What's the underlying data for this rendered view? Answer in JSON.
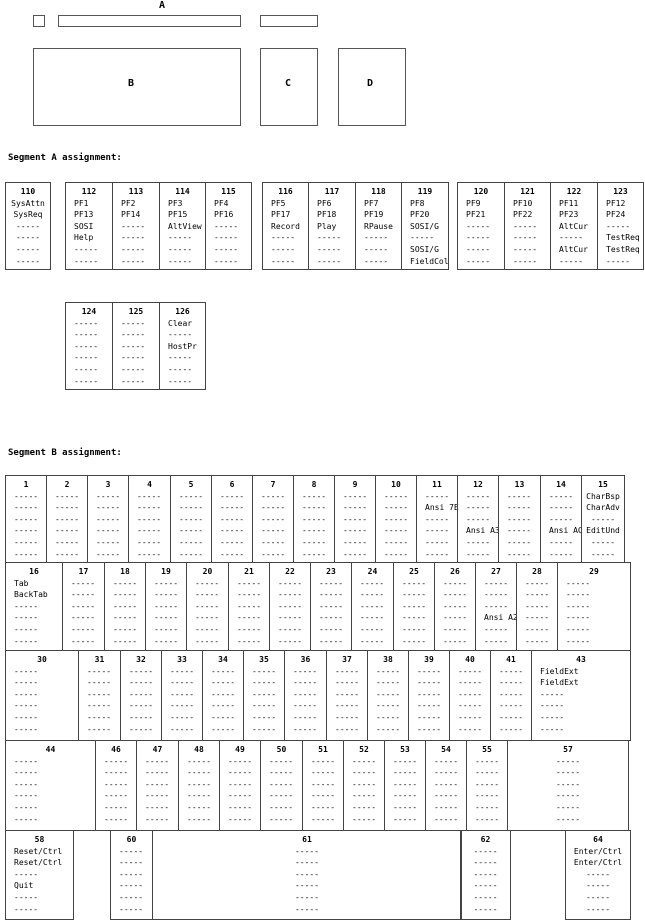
{
  "overview": {
    "label_a": "A",
    "label_b": "B",
    "label_c": "C",
    "label_d": "D"
  },
  "segment_a": {
    "title": "Segment A assignment:",
    "keys": [
      {
        "n": "110",
        "lines": [
          "SysAttn",
          "SysReq",
          "-----",
          "-----",
          "-----",
          "-----"
        ]
      },
      {
        "n": "112",
        "lines": [
          "PF1",
          "PF13",
          "SOSI",
          "Help",
          "-----",
          "-----"
        ]
      },
      {
        "n": "113",
        "lines": [
          "PF2",
          "PF14",
          "-----",
          "-----",
          "-----",
          "-----"
        ]
      },
      {
        "n": "114",
        "lines": [
          "PF3",
          "PF15",
          "AltView",
          "-----",
          "-----",
          "-----"
        ]
      },
      {
        "n": "115",
        "lines": [
          "PF4",
          "PF16",
          "-----",
          "-----",
          "-----",
          "-----"
        ]
      },
      {
        "n": "116",
        "lines": [
          "PF5",
          "PF17",
          "Record",
          "-----",
          "-----",
          "-----"
        ]
      },
      {
        "n": "117",
        "lines": [
          "PF6",
          "PF18",
          "Play",
          "-----",
          "-----",
          "-----"
        ]
      },
      {
        "n": "118",
        "lines": [
          "PF7",
          "PF19",
          "RPause",
          "-----",
          "-----",
          "-----"
        ]
      },
      {
        "n": "119",
        "lines": [
          "PF8",
          "PF20",
          "SOSI/G",
          "-----",
          "SOSI/G",
          "FieldCol"
        ]
      },
      {
        "n": "120",
        "lines": [
          "PF9",
          "PF21",
          "-----",
          "-----",
          "-----",
          "-----"
        ]
      },
      {
        "n": "121",
        "lines": [
          "PF10",
          "PF22",
          "-----",
          "-----",
          "-----",
          "-----"
        ]
      },
      {
        "n": "122",
        "lines": [
          "PF11",
          "PF23",
          "AltCur",
          "-----",
          "AltCur",
          "-----"
        ]
      },
      {
        "n": "123",
        "lines": [
          "PF12",
          "PF24",
          "-----",
          "TestReq",
          "TestReq",
          "-----"
        ]
      },
      {
        "n": "124",
        "lines": [
          "-----",
          "-----",
          "-----",
          "-----",
          "-----",
          "-----"
        ]
      },
      {
        "n": "125",
        "lines": [
          "-----",
          "-----",
          "-----",
          "-----",
          "-----",
          "-----"
        ]
      },
      {
        "n": "126",
        "lines": [
          "Clear",
          "-----",
          "HostPr",
          "-----",
          "-----",
          "-----"
        ]
      }
    ]
  },
  "segment_b": {
    "title": "Segment B assignment:",
    "keys": [
      {
        "n": "1",
        "lines": [
          "-----",
          "-----",
          "-----",
          "-----",
          "-----",
          "-----"
        ]
      },
      {
        "n": "2",
        "lines": [
          "-----",
          "-----",
          "-----",
          "-----",
          "-----",
          "-----"
        ]
      },
      {
        "n": "3",
        "lines": [
          "-----",
          "-----",
          "-----",
          "-----",
          "-----",
          "-----"
        ]
      },
      {
        "n": "4",
        "lines": [
          "-----",
          "-----",
          "-----",
          "-----",
          "-----",
          "-----"
        ]
      },
      {
        "n": "5",
        "lines": [
          "-----",
          "-----",
          "-----",
          "-----",
          "-----",
          "-----"
        ]
      },
      {
        "n": "6",
        "lines": [
          "-----",
          "-----",
          "-----",
          "-----",
          "-----",
          "-----"
        ]
      },
      {
        "n": "7",
        "lines": [
          "-----",
          "-----",
          "-----",
          "-----",
          "-----",
          "-----"
        ]
      },
      {
        "n": "8",
        "lines": [
          "-----",
          "-----",
          "-----",
          "-----",
          "-----",
          "-----"
        ]
      },
      {
        "n": "9",
        "lines": [
          "-----",
          "-----",
          "-----",
          "-----",
          "-----",
          "-----"
        ]
      },
      {
        "n": "10",
        "lines": [
          "-----",
          "-----",
          "-----",
          "-----",
          "-----",
          "-----"
        ]
      },
      {
        "n": "11",
        "lines": [
          "-----",
          "Ansi 7E",
          "-----",
          "-----",
          "-----",
          "-----"
        ]
      },
      {
        "n": "12",
        "lines": [
          "-----",
          "-----",
          "-----",
          "Ansi A3",
          "-----",
          "-----"
        ]
      },
      {
        "n": "13",
        "lines": [
          "-----",
          "-----",
          "-----",
          "-----",
          "-----",
          "-----"
        ]
      },
      {
        "n": "14",
        "lines": [
          "-----",
          "-----",
          "-----",
          "Ansi AC",
          "-----",
          "-----"
        ]
      },
      {
        "n": "15",
        "lines": [
          "CharBsp",
          "CharAdv",
          "-----",
          "EditUnd",
          "-----",
          "-----"
        ]
      },
      {
        "n": "16",
        "lines": [
          "Tab",
          "BackTab",
          "-----",
          "-----",
          "-----",
          "-----"
        ]
      },
      {
        "n": "17",
        "lines": [
          "-----",
          "-----",
          "-----",
          "-----",
          "-----",
          "-----"
        ]
      },
      {
        "n": "18",
        "lines": [
          "-----",
          "-----",
          "-----",
          "-----",
          "-----",
          "-----"
        ]
      },
      {
        "n": "19",
        "lines": [
          "-----",
          "-----",
          "-----",
          "-----",
          "-----",
          "-----"
        ]
      },
      {
        "n": "20",
        "lines": [
          "-----",
          "-----",
          "-----",
          "-----",
          "-----",
          "-----"
        ]
      },
      {
        "n": "21",
        "lines": [
          "-----",
          "-----",
          "-----",
          "-----",
          "-----",
          "-----"
        ]
      },
      {
        "n": "22",
        "lines": [
          "-----",
          "-----",
          "-----",
          "-----",
          "-----",
          "-----"
        ]
      },
      {
        "n": "23",
        "lines": [
          "-----",
          "-----",
          "-----",
          "-----",
          "-----",
          "-----"
        ]
      },
      {
        "n": "24",
        "lines": [
          "-----",
          "-----",
          "-----",
          "-----",
          "-----",
          "-----"
        ]
      },
      {
        "n": "25",
        "lines": [
          "-----",
          "-----",
          "-----",
          "-----",
          "-----",
          "-----"
        ]
      },
      {
        "n": "26",
        "lines": [
          "-----",
          "-----",
          "-----",
          "-----",
          "-----",
          "-----"
        ]
      },
      {
        "n": "27",
        "lines": [
          "-----",
          "-----",
          "-----",
          "Ansi A2",
          "-----",
          "-----"
        ]
      },
      {
        "n": "28",
        "lines": [
          "-----",
          "-----",
          "-----",
          "-----",
          "-----",
          "-----"
        ]
      },
      {
        "n": "29",
        "lines": [
          "-----",
          "-----",
          "-----",
          "-----",
          "-----",
          "-----"
        ]
      },
      {
        "n": "30",
        "lines": [
          "-----",
          "-----",
          "-----",
          "-----",
          "-----",
          "-----"
        ]
      },
      {
        "n": "31",
        "lines": [
          "-----",
          "-----",
          "-----",
          "-----",
          "-----",
          "-----"
        ]
      },
      {
        "n": "32",
        "lines": [
          "-----",
          "-----",
          "-----",
          "-----",
          "-----",
          "-----"
        ]
      },
      {
        "n": "33",
        "lines": [
          "-----",
          "-----",
          "-----",
          "-----",
          "-----",
          "-----"
        ]
      },
      {
        "n": "34",
        "lines": [
          "-----",
          "-----",
          "-----",
          "-----",
          "-----",
          "-----"
        ]
      },
      {
        "n": "35",
        "lines": [
          "-----",
          "-----",
          "-----",
          "-----",
          "-----",
          "-----"
        ]
      },
      {
        "n": "36",
        "lines": [
          "-----",
          "-----",
          "-----",
          "-----",
          "-----",
          "-----"
        ]
      },
      {
        "n": "37",
        "lines": [
          "-----",
          "-----",
          "-----",
          "-----",
          "-----",
          "-----"
        ]
      },
      {
        "n": "38",
        "lines": [
          "-----",
          "-----",
          "-----",
          "-----",
          "-----",
          "-----"
        ]
      },
      {
        "n": "39",
        "lines": [
          "-----",
          "-----",
          "-----",
          "-----",
          "-----",
          "-----"
        ]
      },
      {
        "n": "40",
        "lines": [
          "-----",
          "-----",
          "-----",
          "-----",
          "-----",
          "-----"
        ]
      },
      {
        "n": "41",
        "lines": [
          "-----",
          "-----",
          "-----",
          "-----",
          "-----",
          "-----"
        ]
      },
      {
        "n": "43",
        "lines": [
          "FieldExt",
          "FieldExt",
          "-----",
          "-----",
          "-----",
          "-----"
        ]
      },
      {
        "n": "44",
        "lines": [
          "-----",
          "-----",
          "-----",
          "-----",
          "-----",
          "-----"
        ]
      },
      {
        "n": "46",
        "lines": [
          "-----",
          "-----",
          "-----",
          "-----",
          "-----",
          "-----"
        ]
      },
      {
        "n": "47",
        "lines": [
          "-----",
          "-----",
          "-----",
          "-----",
          "-----",
          "-----"
        ]
      },
      {
        "n": "48",
        "lines": [
          "-----",
          "-----",
          "-----",
          "-----",
          "-----",
          "-----"
        ]
      },
      {
        "n": "49",
        "lines": [
          "-----",
          "-----",
          "-----",
          "-----",
          "-----",
          "-----"
        ]
      },
      {
        "n": "50",
        "lines": [
          "-----",
          "-----",
          "-----",
          "-----",
          "-----",
          "-----"
        ]
      },
      {
        "n": "51",
        "lines": [
          "-----",
          "-----",
          "-----",
          "-----",
          "-----",
          "-----"
        ]
      },
      {
        "n": "52",
        "lines": [
          "-----",
          "-----",
          "-----",
          "-----",
          "-----",
          "-----"
        ]
      },
      {
        "n": "53",
        "lines": [
          "-----",
          "-----",
          "-----",
          "-----",
          "-----",
          "-----"
        ]
      },
      {
        "n": "54",
        "lines": [
          "-----",
          "-----",
          "-----",
          "-----",
          "-----",
          "-----"
        ]
      },
      {
        "n": "55",
        "lines": [
          "-----",
          "-----",
          "-----",
          "-----",
          "-----",
          "-----"
        ]
      },
      {
        "n": "57",
        "lines": [
          "-----",
          "-----",
          "-----",
          "-----",
          "-----",
          "-----"
        ]
      },
      {
        "n": "58",
        "lines": [
          "Reset/Ctrl",
          "Reset/Ctrl",
          "-----",
          "Quit",
          "-----",
          "-----"
        ]
      },
      {
        "n": "60",
        "lines": [
          "-----",
          "-----",
          "-----",
          "-----",
          "-----",
          "-----"
        ]
      },
      {
        "n": "61",
        "lines": [
          "-----",
          "-----",
          "-----",
          "-----",
          "-----",
          "-----"
        ]
      },
      {
        "n": "62",
        "lines": [
          "-----",
          "-----",
          "-----",
          "-----",
          "-----",
          "-----"
        ]
      },
      {
        "n": "64",
        "lines": [
          "Enter/Ctrl",
          "Enter/Ctrl",
          "-----",
          "-----",
          "-----",
          "-----"
        ]
      }
    ]
  }
}
